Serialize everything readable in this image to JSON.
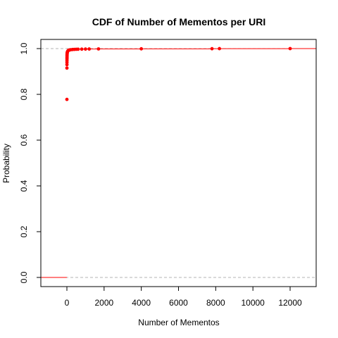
{
  "chart_data": {
    "type": "scatter",
    "title": "CDF of Number of Mementos per URI",
    "xlabel": "Number of Mementos",
    "ylabel": "Probability",
    "xlim": [
      -1400,
      13400
    ],
    "ylim": [
      -0.04,
      1.04
    ],
    "x_ticks": [
      0,
      2000,
      4000,
      6000,
      8000,
      10000,
      12000
    ],
    "x_tick_labels": [
      "0",
      "2000",
      "4000",
      "6000",
      "8000",
      "10000",
      "12000"
    ],
    "y_ticks": [
      0.0,
      0.2,
      0.4,
      0.6,
      0.8,
      1.0
    ],
    "y_tick_labels": [
      "0.0",
      "0.2",
      "0.4",
      "0.6",
      "0.8",
      "1.0"
    ],
    "reference_lines": [
      0,
      1
    ],
    "grid": false,
    "colors": {
      "points": "#ff0000",
      "step_line": "#ff0000",
      "reference": "#b3b3b3",
      "axis": "#000000"
    },
    "series": [
      {
        "x": [
          1,
          2,
          3,
          4,
          5,
          6,
          7,
          8,
          9,
          10,
          12,
          15,
          20,
          30,
          40,
          60,
          80,
          100,
          150,
          200,
          300,
          400,
          500,
          600,
          800,
          1000,
          1200,
          1700,
          4000,
          7800,
          8200,
          12000
        ],
        "y": [
          0.778,
          0.915,
          0.93,
          0.94,
          0.948,
          0.955,
          0.961,
          0.966,
          0.97,
          0.973,
          0.977,
          0.98,
          0.983,
          0.986,
          0.988,
          0.99,
          0.992,
          0.993,
          0.994,
          0.995,
          0.996,
          0.9965,
          0.997,
          0.9973,
          0.9976,
          0.9979,
          0.9982,
          0.9985,
          0.999,
          0.9995,
          0.9998,
          1.0
        ]
      }
    ]
  }
}
